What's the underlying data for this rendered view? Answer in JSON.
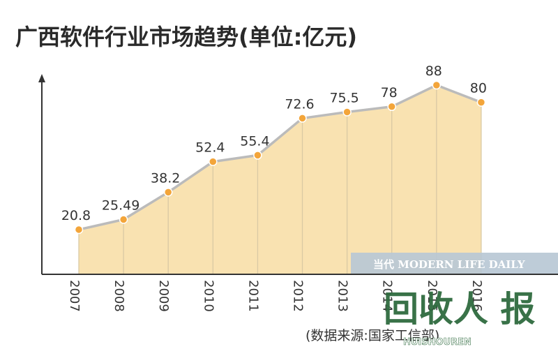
{
  "chart_data": {
    "type": "area",
    "title": "广西软件行业市场趋势(单位:亿元)",
    "categories": [
      "2007",
      "2008",
      "2009",
      "2010",
      "2011",
      "2012",
      "2013",
      "2014",
      "2015",
      "2016"
    ],
    "values": [
      20.8,
      25.49,
      38.2,
      52.4,
      55.4,
      72.6,
      75.5,
      78,
      88,
      80
    ],
    "data_labels": [
      "20.8",
      "25.49",
      "38.2",
      "52.4",
      "55.4",
      "72.6",
      "75.5",
      "78",
      "88",
      "80"
    ],
    "ylim": [
      0,
      100
    ],
    "grid": false,
    "colors": {
      "fill": "#f9e2b1",
      "line": "#bbbbbb",
      "marker": "#f3a53a",
      "axis": "#333333",
      "divider": "#d9c9a4"
    }
  },
  "source": "(数据来源:国家工信部)",
  "watermark": {
    "banner": "当代 MODERN LIFE DAILY",
    "logo": "回收人 报",
    "subtext": "HUISHOUREN"
  }
}
